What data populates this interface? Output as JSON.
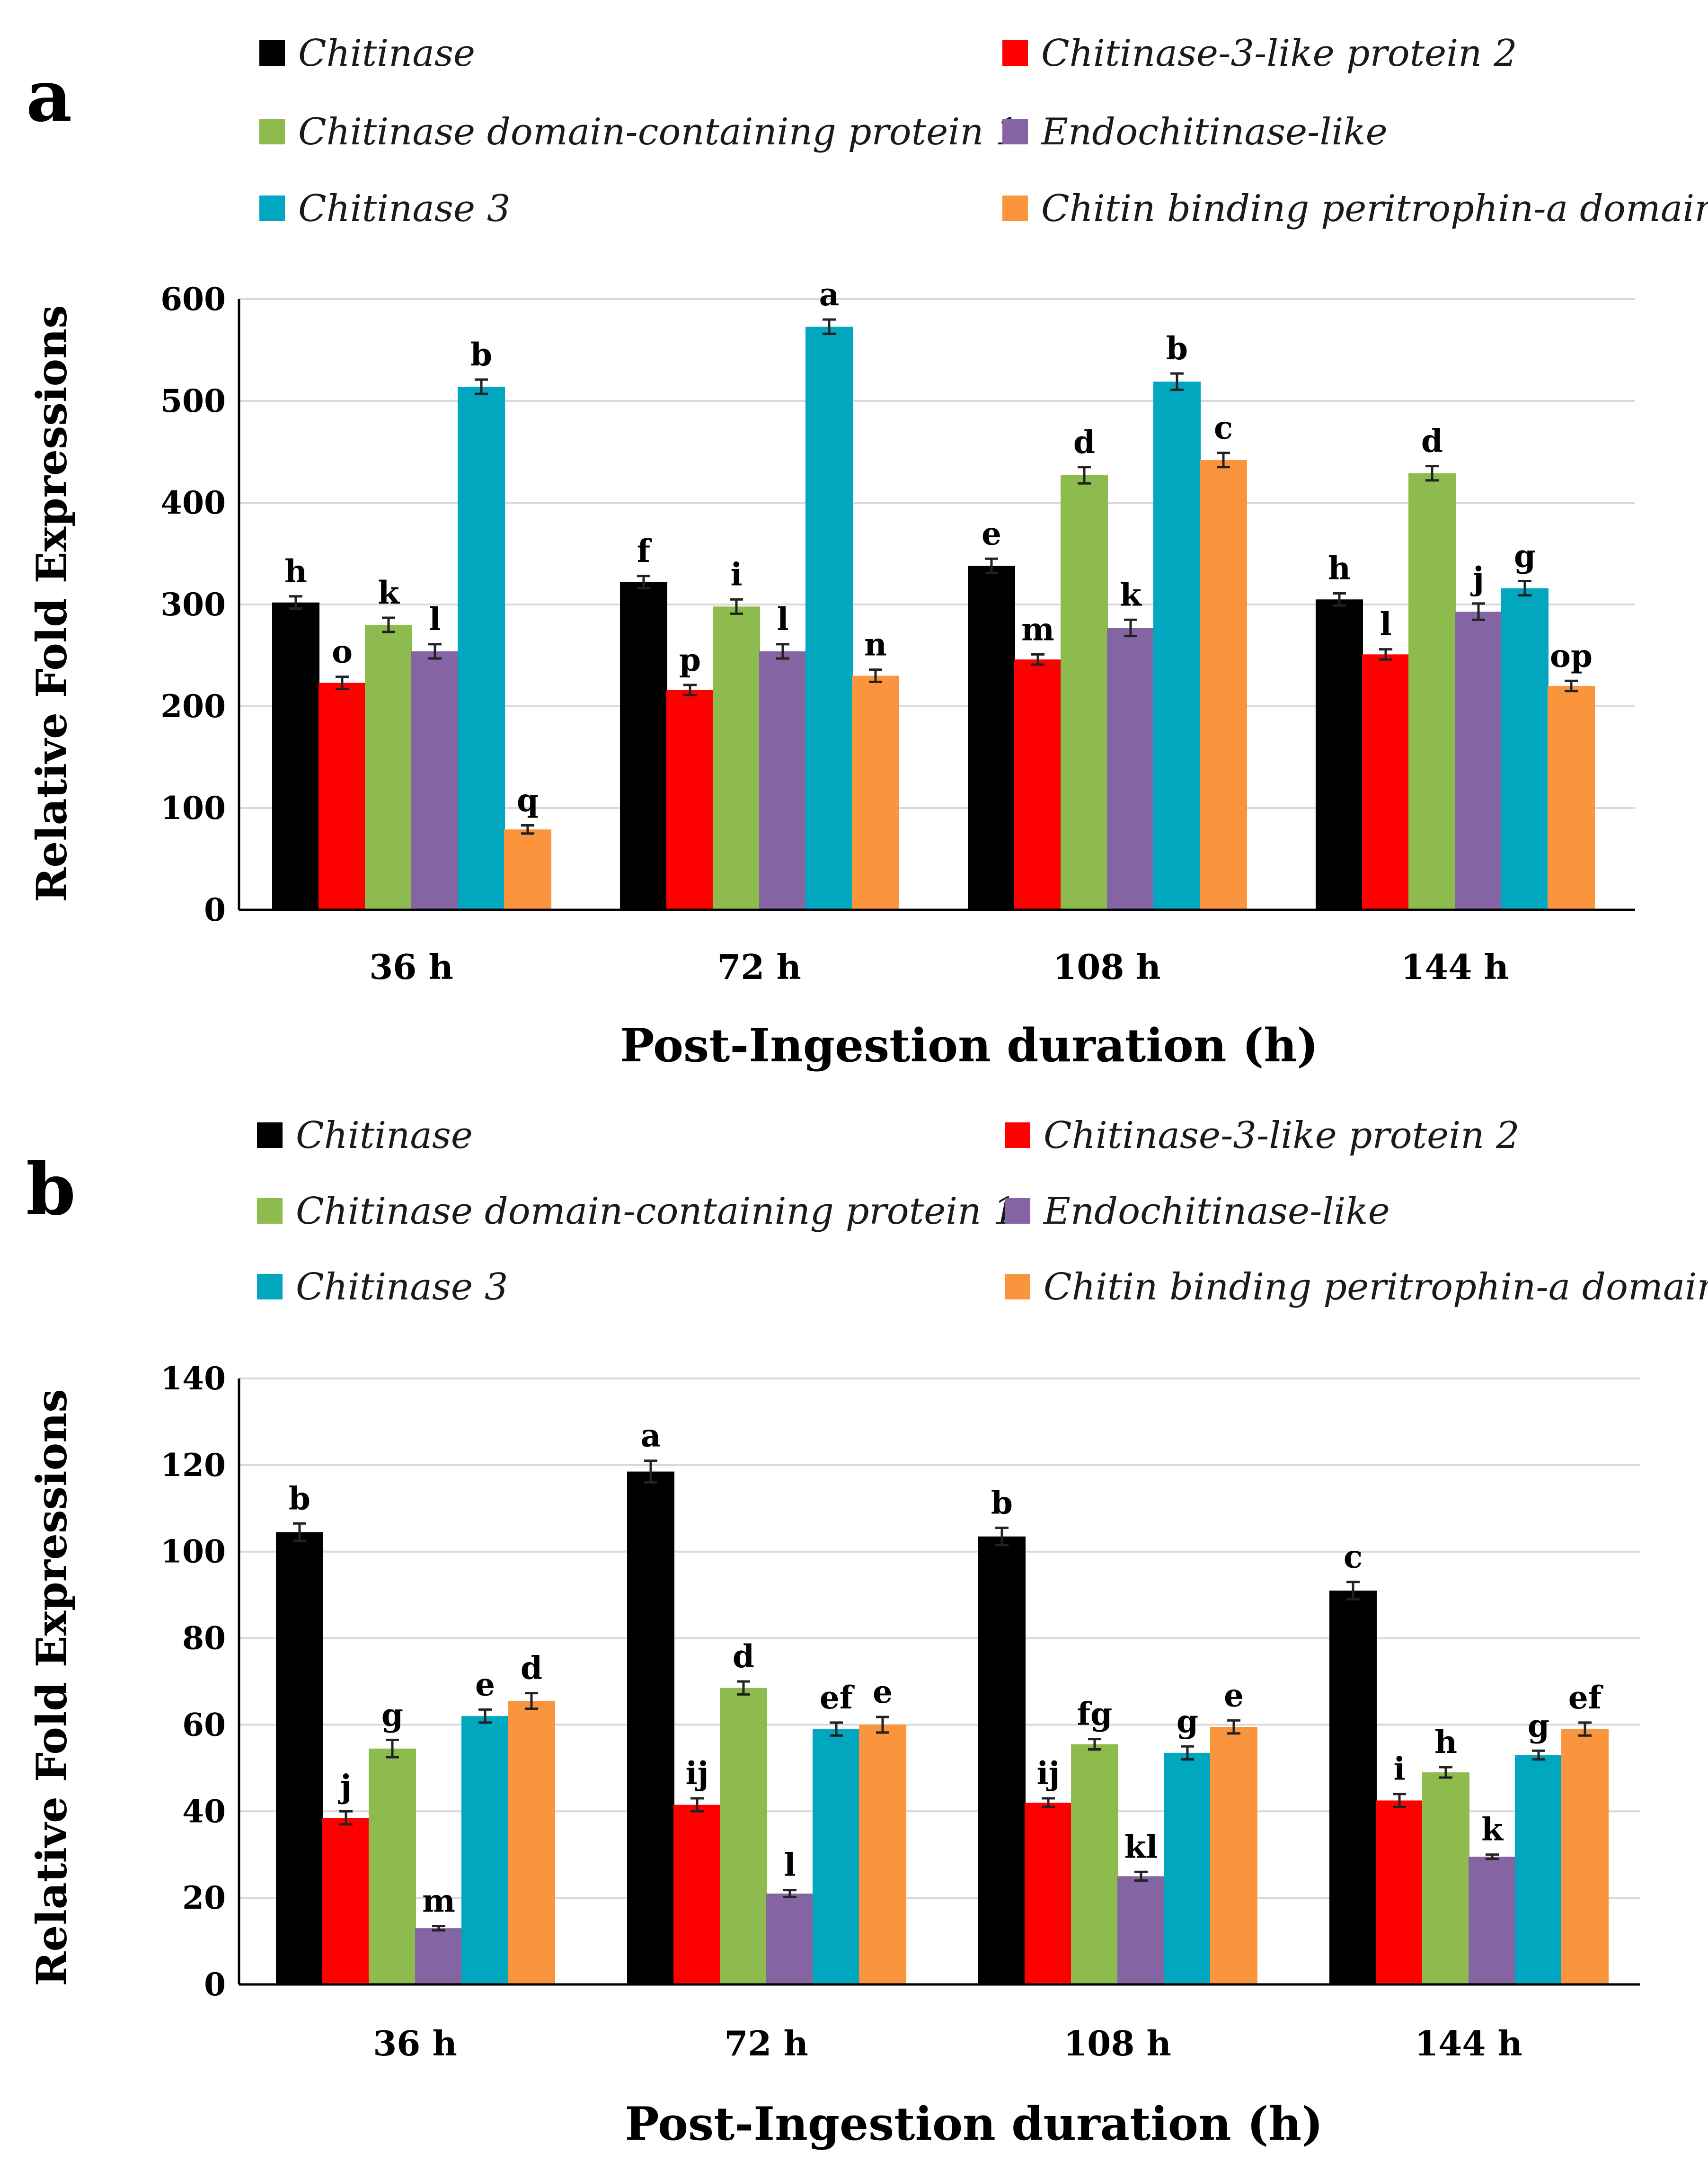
{
  "chart_data": [
    {
      "panel": "a",
      "type": "bar",
      "categories": [
        "36 h",
        "72 h",
        "108 h",
        "144 h"
      ],
      "xlabel": "Post-Ingestion duration (h)",
      "ylabel": "Relative Fold Expressions",
      "ylim": [
        0,
        600
      ],
      "yticks": [
        0,
        100,
        200,
        300,
        400,
        500,
        600
      ],
      "grid": true,
      "legend_position": "top",
      "series": [
        {
          "name": "Chitinase",
          "color": "#000000",
          "values": [
            302,
            322,
            338,
            305
          ],
          "errors": [
            6,
            6,
            7,
            6
          ],
          "letters": [
            "h",
            "f",
            "e",
            "h"
          ]
        },
        {
          "name": "Chitinase-3-like protein 2",
          "color": "#ff0000",
          "values": [
            223,
            216,
            246,
            251
          ],
          "errors": [
            6,
            5,
            5,
            5
          ],
          "letters": [
            "o",
            "p",
            "m",
            "l"
          ]
        },
        {
          "name": "Chitinase domain-containing protein 1",
          "color": "#8dbb4e",
          "values": [
            280,
            298,
            427,
            429
          ],
          "errors": [
            7,
            7,
            8,
            7
          ],
          "letters": [
            "k",
            "i",
            "d",
            "d"
          ]
        },
        {
          "name": "Endochitinase-like",
          "color": "#8464a2",
          "values": [
            254,
            254,
            277,
            293
          ],
          "errors": [
            7,
            7,
            8,
            8
          ],
          "letters": [
            "l",
            "l",
            "k",
            "j"
          ]
        },
        {
          "name": "Chitinase 3",
          "color": "#00a7bf",
          "values": [
            514,
            573,
            519,
            316
          ],
          "errors": [
            7,
            7,
            8,
            7
          ],
          "letters": [
            "b",
            "a",
            "b",
            "g"
          ]
        },
        {
          "name": "Chitin binding peritrophin-a domain",
          "color": "#fa953e",
          "values": [
            79,
            230,
            442,
            220
          ],
          "errors": [
            4,
            6,
            7,
            5
          ],
          "letters": [
            "q",
            "n",
            "c",
            "op"
          ]
        }
      ]
    },
    {
      "panel": "b",
      "type": "bar",
      "categories": [
        "36 h",
        "72 h",
        "108 h",
        "144 h"
      ],
      "xlabel": "Post-Ingestion duration (h)",
      "ylabel": "Relative Fold Expressions",
      "ylim": [
        0,
        140
      ],
      "yticks": [
        0,
        20,
        40,
        60,
        80,
        100,
        120,
        140
      ],
      "grid": true,
      "legend_position": "top",
      "series": [
        {
          "name": "Chitinase",
          "color": "#000000",
          "values": [
            104.5,
            118.5,
            103.5,
            91
          ],
          "errors": [
            2,
            2.5,
            2,
            2
          ],
          "letters": [
            "b",
            "a",
            "b",
            "c"
          ]
        },
        {
          "name": "Chitinase-3-like protein 2",
          "color": "#ff0000",
          "values": [
            38.5,
            41.5,
            42,
            42.5
          ],
          "errors": [
            1.5,
            1.5,
            1,
            1.5
          ],
          "letters": [
            "j",
            "ij",
            "ij",
            "i"
          ]
        },
        {
          "name": "Chitinase domain-containing protein 1",
          "color": "#8dbb4e",
          "values": [
            54.5,
            68.5,
            55.5,
            49
          ],
          "errors": [
            2,
            1.5,
            1.2,
            1.2
          ],
          "letters": [
            "g",
            "d",
            "fg",
            "h"
          ]
        },
        {
          "name": "Endochitinase-like",
          "color": "#8464a2",
          "values": [
            13,
            21,
            25,
            29.5
          ],
          "errors": [
            0.5,
            0.8,
            1,
            0.5
          ],
          "letters": [
            "m",
            "l",
            "kl",
            "k"
          ]
        },
        {
          "name": "Chitinase 3",
          "color": "#00a7bf",
          "values": [
            62,
            59,
            53.5,
            53
          ],
          "errors": [
            1.5,
            1.5,
            1.5,
            1
          ],
          "letters": [
            "e",
            "ef",
            "g",
            "g"
          ]
        },
        {
          "name": "Chitin binding peritrophin-a domain",
          "color": "#fa953e",
          "values": [
            65.5,
            60,
            59.5,
            59
          ],
          "errors": [
            1.8,
            1.8,
            1.5,
            1.5
          ],
          "letters": [
            "d",
            "e",
            "e",
            "ef"
          ]
        }
      ]
    }
  ]
}
